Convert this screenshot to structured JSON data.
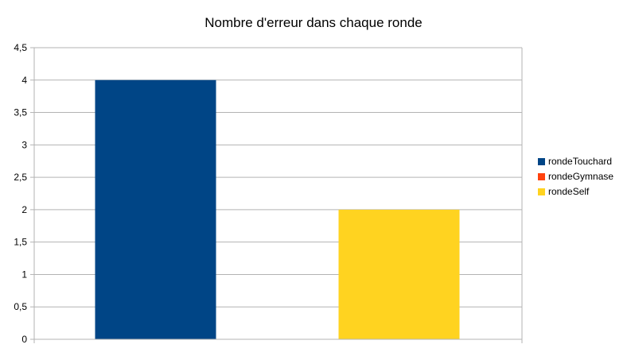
{
  "chart_data": {
    "type": "bar",
    "title": "Nombre d'erreur dans chaque ronde",
    "xlabel": "",
    "ylabel": "",
    "ylim": [
      0,
      4.5
    ],
    "yticks": [
      "0",
      "0,5",
      "1",
      "1,5",
      "2",
      "2,5",
      "3",
      "3,5",
      "4",
      "4,5"
    ],
    "grid": true,
    "legend_position": "right",
    "series": [
      {
        "name": "rondeTouchard",
        "color": "#004586",
        "value": 4
      },
      {
        "name": "rondeGymnase",
        "color": "#ff420e",
        "value": 0
      },
      {
        "name": "rondeSelf",
        "color": "#ffd320",
        "value": 2
      }
    ]
  }
}
